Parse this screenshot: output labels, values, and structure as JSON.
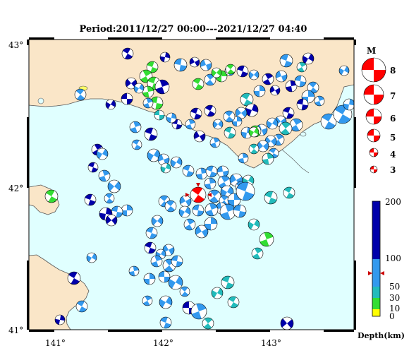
{
  "title": "Period:2011/12/27 00:00---2021/12/27 04:40",
  "map": {
    "lat_labels": [
      "43°",
      "42°",
      "41°"
    ],
    "lon_labels": [
      "141°",
      "142°",
      "143°"
    ],
    "colors": {
      "sea": "#e0ffff",
      "land": "#fae6c8",
      "coast": "#555555"
    }
  },
  "magnitude_legend": {
    "title": "M",
    "items": [
      "8",
      "7",
      "6",
      "5",
      "4",
      "3"
    ],
    "color": "#ff0000"
  },
  "depth_scale": {
    "ticks": [
      "200",
      "100",
      "50",
      "30",
      "10",
      "0"
    ],
    "unit": "Depth(km)",
    "colors": {
      "0-10": "#ffff00",
      "10-30": "#33dd33",
      "30-50": "#22bbbb",
      "50-100": "#3399ee",
      "100-200": "#0000aa"
    }
  },
  "featured_event": {
    "depth_class": "50-100",
    "color": "#ff0000"
  }
}
